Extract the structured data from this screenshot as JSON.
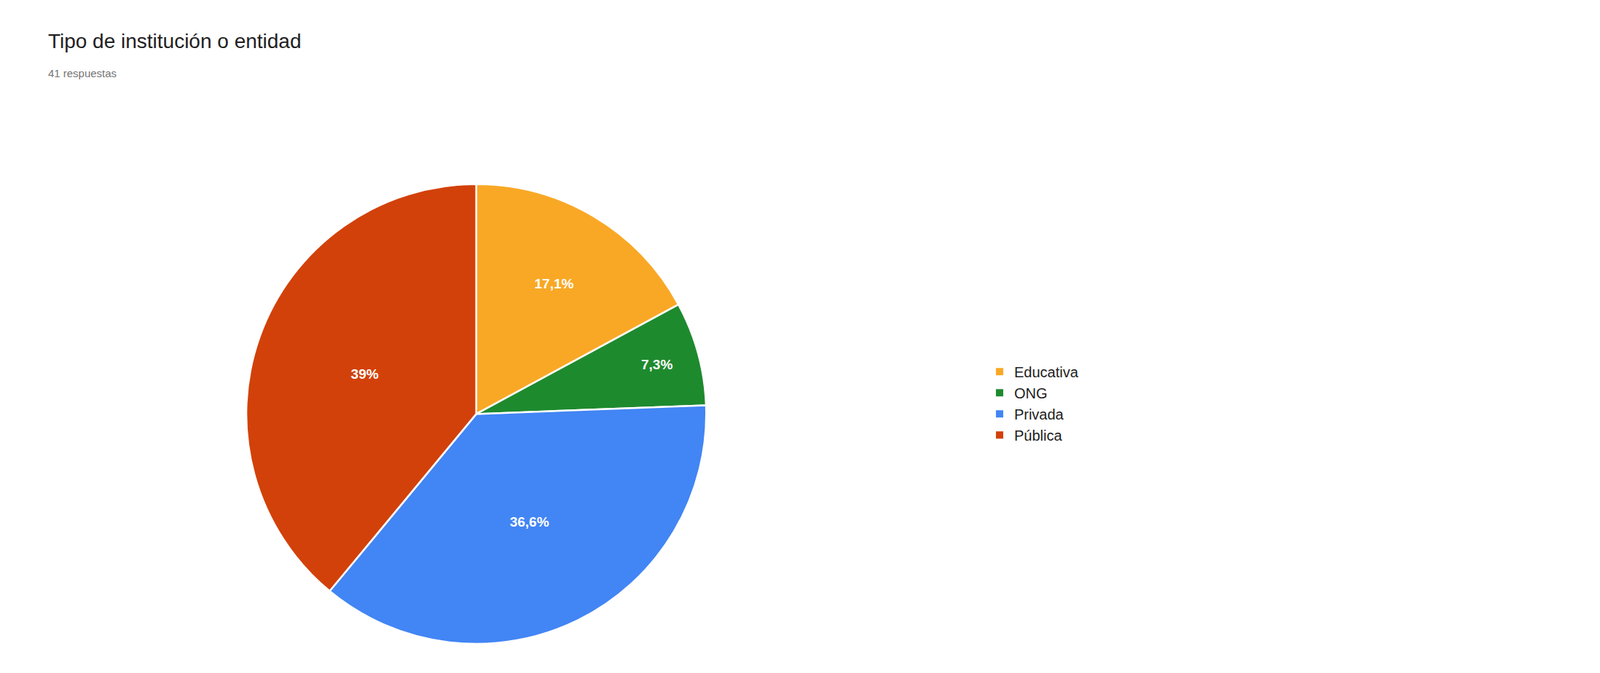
{
  "chart_data": {
    "type": "pie",
    "title": "Tipo de institución o entidad",
    "subtitle": "41 respuestas",
    "categories": [
      "Educativa",
      "ONG",
      "Privada",
      "Pública"
    ],
    "values": [
      17.1,
      7.3,
      36.6,
      39.0
    ],
    "value_labels": [
      "17,1%",
      "7,3%",
      "36,6%",
      "39%"
    ],
    "colors": [
      "#F9A825",
      "#1E8A2E",
      "#4285F4",
      "#D2410A"
    ],
    "data_labels": true,
    "legend": "right"
  }
}
